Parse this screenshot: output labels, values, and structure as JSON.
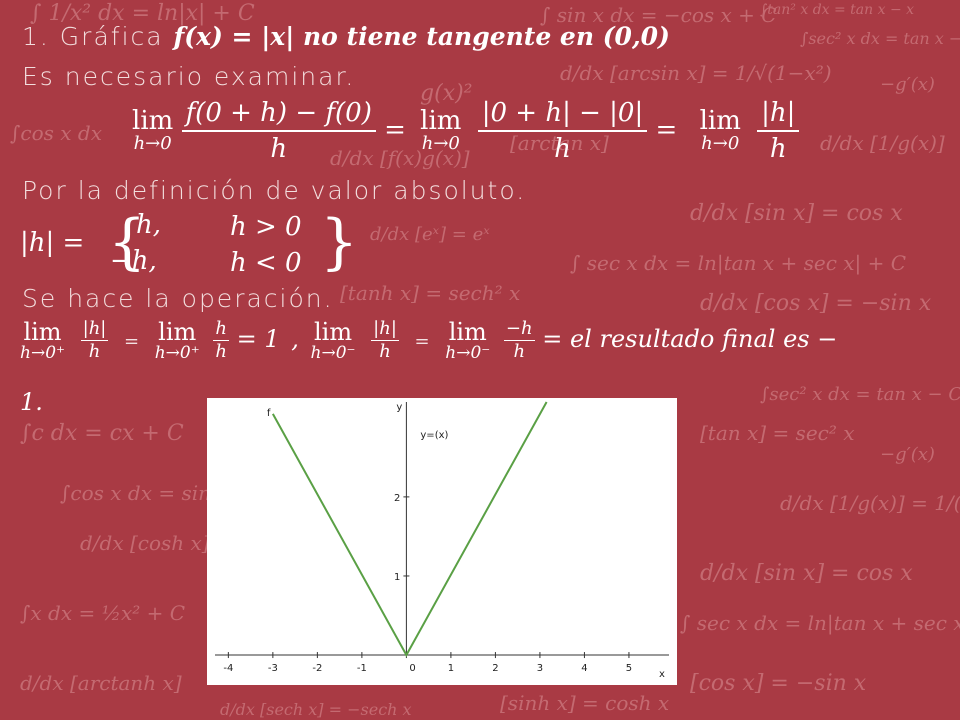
{
  "title": {
    "prefix": "1. Gráfica ",
    "formula": "f(x) = |x| no tiene tangente en (0,0)"
  },
  "line2": "Es necesario examinar.",
  "limit_line": {
    "lim": "lim",
    "sub": "h→0",
    "num1": "f(0 + h) − f(0)",
    "den1": "h",
    "eq": "=",
    "num2": "|0 + h| − |0|",
    "den2": "h",
    "num3": "|h|",
    "den3": "h"
  },
  "line4": "Por la definición de valor absoluto.",
  "piecewise": {
    "lhs": "|h| =",
    "case1_value": "h,",
    "case1_cond": "h > 0",
    "case2_value": "−h,",
    "case2_cond": "h < 0"
  },
  "line6": "Se hace la operación.",
  "operation": {
    "lim": "lim",
    "sub_plus": "h→0⁺",
    "sub_minus": "h→0⁻",
    "abs_h": "|h|",
    "h": "h",
    "minus_h": "−h",
    "eq": "=",
    "result_plus": "= 1",
    "comma": ",",
    "tail": "= el resultado final es −",
    "tail2": "1."
  },
  "chart_data": {
    "type": "line",
    "title": "",
    "curve_label": "y=(x)",
    "point_label": "f",
    "xlabel": "x",
    "ylabel": "y",
    "xlim": [
      -4.3,
      5.9
    ],
    "ylim": [
      -0.05,
      3.2
    ],
    "x_ticks": [
      -4,
      -3,
      -2,
      -1,
      0,
      1,
      2,
      3,
      4,
      5
    ],
    "y_ticks": [
      1,
      2
    ],
    "series": [
      {
        "x": [
          -3.0,
          0,
          3.15
        ],
        "y": [
          3.05,
          0,
          3.2
        ]
      }
    ],
    "line_color": "#5aa045"
  },
  "colors": {
    "background": "#a93a44",
    "text": "#ffffff"
  }
}
